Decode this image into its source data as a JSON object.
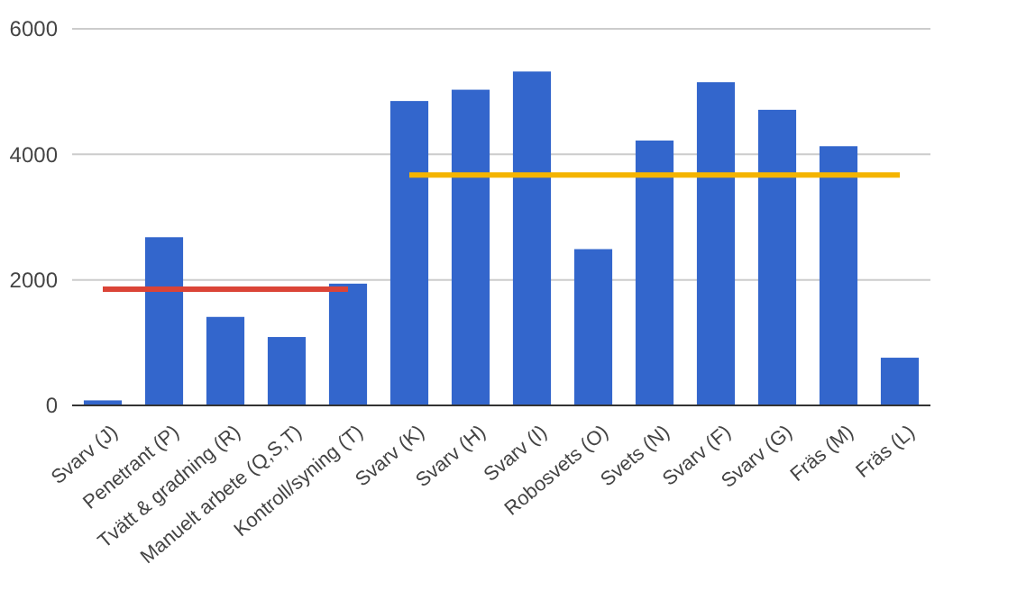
{
  "chart_data": {
    "type": "bar",
    "categories": [
      "Svarv (J)",
      "Penetrant (P)",
      "Tvätt & gradning (R)",
      "Manuelt arbete (Q,S,T)",
      "Kontroll/syning (T)",
      "Svarv (K)",
      "Svarv (H)",
      "Svarv (I)",
      "Robosvets (O)",
      "Svets (N)",
      "Svarv (F)",
      "Svarv (G)",
      "Fräs (M)",
      "Fräs (L)"
    ],
    "series": [
      {
        "color": "#3366cc",
        "values": [
          80,
          2680,
          1410,
          1090,
          1940,
          4850,
          5030,
          5320,
          2490,
          4220,
          5150,
          4710,
          4130,
          760
        ]
      },
      {
        "type": "line",
        "color": "#db4437",
        "values": [
          1850,
          1850,
          1850,
          1850,
          1850,
          null,
          null,
          null,
          null,
          null,
          null,
          null,
          null,
          null
        ]
      },
      {
        "type": "line",
        "color": "#f4b400",
        "values": [
          null,
          null,
          null,
          null,
          null,
          3670,
          3670,
          3670,
          3670,
          3670,
          3670,
          3670,
          3670,
          3670
        ]
      }
    ],
    "ylim": [
      0,
      6000
    ],
    "yticks": [
      0,
      2000,
      4000,
      6000
    ],
    "grid": "y"
  }
}
